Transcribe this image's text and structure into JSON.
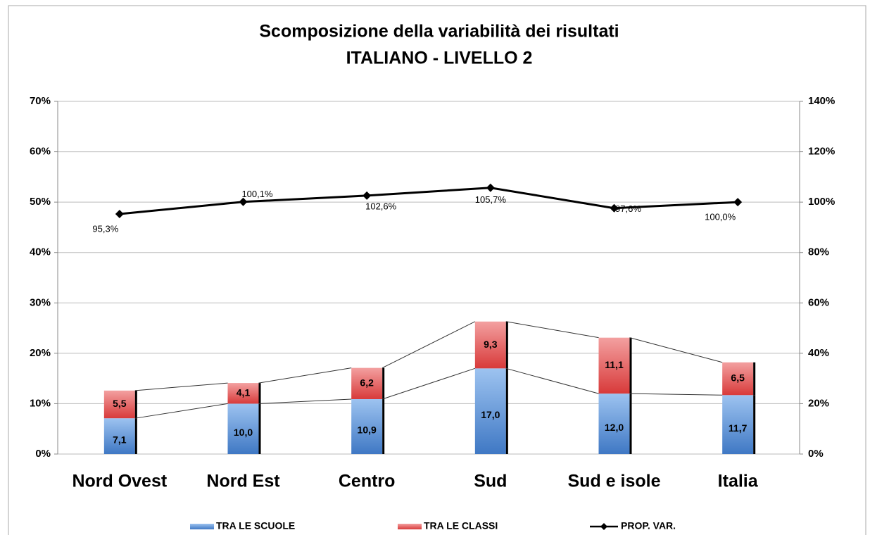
{
  "chart_data": {
    "type": "bar",
    "title": "Scomposizione della variabilità dei risultati",
    "subtitle": "ITALIANO - LIVELLO 2",
    "categories": [
      "Nord Ovest",
      "Nord Est",
      "Centro",
      "Sud",
      "Sud e isole",
      "Italia"
    ],
    "series": [
      {
        "name": "TRA LE SCUOLE",
        "color": "#4f81bd",
        "values": [
          7.1,
          10.0,
          10.9,
          17.0,
          12.0,
          11.7
        ],
        "value_labels": [
          "7,1",
          "10,0",
          "10,9",
          "17,0",
          "12,0",
          "11,7"
        ]
      },
      {
        "name": "TRA LE CLASSI",
        "color": "#e04848",
        "values": [
          5.5,
          4.1,
          6.2,
          9.3,
          11.1,
          6.5
        ],
        "value_labels": [
          "5,5",
          "4,1",
          "6,2",
          "9,3",
          "11,1",
          "6,5"
        ]
      },
      {
        "name": "PROP. VAR.",
        "color": "#000000",
        "type": "line",
        "axis": "y2",
        "values": [
          95.3,
          100.1,
          102.6,
          105.7,
          97.6,
          100.0
        ],
        "value_labels": [
          "95,3%",
          "100,1%",
          "102,6%",
          "105,7%",
          "97,6%",
          "100,0%"
        ]
      }
    ],
    "ylim": [
      0,
      70
    ],
    "yticks": [
      {
        "value": 0,
        "label": "0%"
      },
      {
        "value": 10,
        "label": "10%"
      },
      {
        "value": 20,
        "label": "20%"
      },
      {
        "value": 30,
        "label": "30%"
      },
      {
        "value": 40,
        "label": "40%"
      },
      {
        "value": 50,
        "label": "50%"
      },
      {
        "value": 60,
        "label": "60%"
      },
      {
        "value": 70,
        "label": "70%"
      }
    ],
    "y2lim": [
      0,
      140
    ],
    "y2ticks": [
      {
        "value": 0,
        "label": "0%"
      },
      {
        "value": 20,
        "label": "20%"
      },
      {
        "value": 40,
        "label": "40%"
      },
      {
        "value": 60,
        "label": "60%"
      },
      {
        "value": 80,
        "label": "80%"
      },
      {
        "value": 100,
        "label": "100%"
      },
      {
        "value": 120,
        "label": "120%"
      },
      {
        "value": 140,
        "label": "140%"
      }
    ],
    "grid": true,
    "stacked": true,
    "legend": "bottom"
  }
}
